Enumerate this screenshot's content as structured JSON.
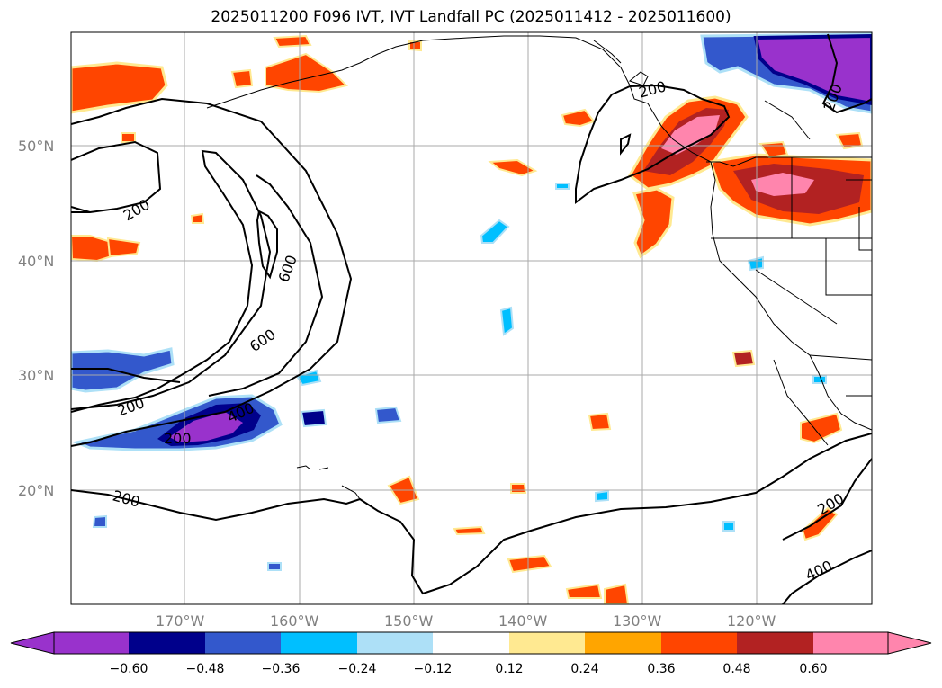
{
  "title": "2025011200 F096 IVT, IVT Landfall PC (2025011412 - 2025011600)",
  "lat_labels": [
    "50°N",
    "40°N",
    "30°N",
    "20°N"
  ],
  "lon_labels": [
    "170°W",
    "160°W",
    "150°W",
    "140°W",
    "130°W",
    "120°W"
  ],
  "contour_labels": [
    "200",
    "600",
    "600",
    "200",
    "400",
    "200",
    "200",
    "200",
    "200",
    "400",
    "200"
  ],
  "colorbar": {
    "ticks": [
      "−0.60",
      "−0.48",
      "−0.36",
      "−0.24",
      "−0.12",
      "0.12",
      "0.24",
      "0.36",
      "0.48",
      "0.60"
    ],
    "colors": [
      "#9932CC",
      "#00008B",
      "#3358CC",
      "#00BFFF",
      "#ADE0F7",
      "#FFFFFF",
      "#FFE991",
      "#FFA500",
      "#FF4500",
      "#B22222",
      "#FF85AD"
    ]
  }
}
